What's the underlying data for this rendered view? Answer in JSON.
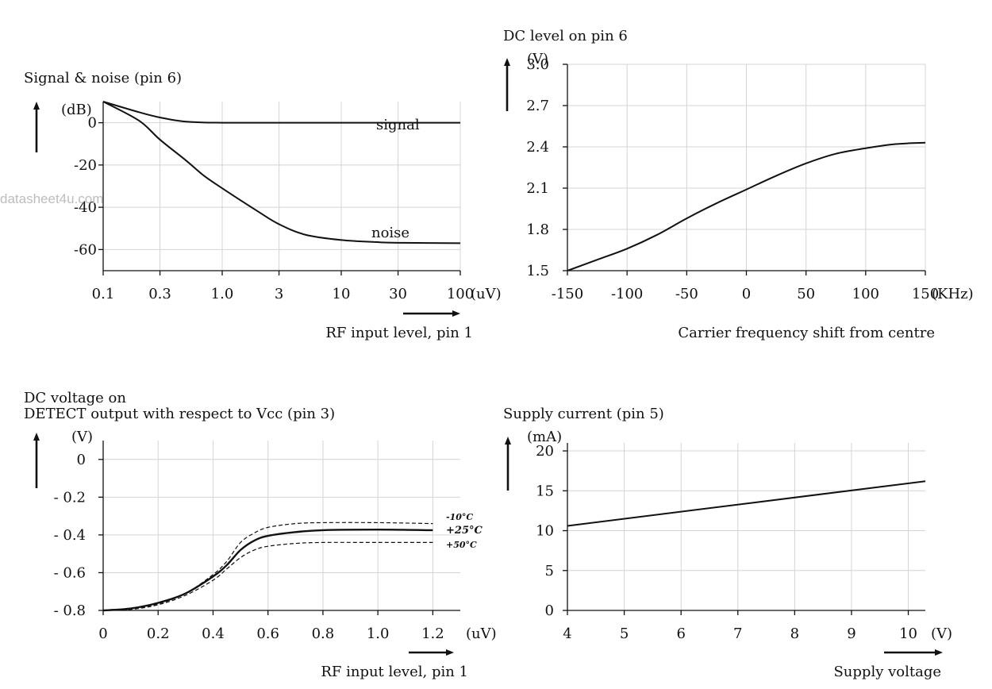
{
  "watermark": "datasheet4u.com",
  "chart_data": [
    {
      "type": "line",
      "title": "Signal & noise (pin 6)",
      "ylabel": "(dB)",
      "xunit": "(uV)",
      "xlabel": "RF input level, pin 1",
      "xscale": "log",
      "xlim": [
        0.1,
        100
      ],
      "ylim": [
        -70,
        10
      ],
      "xticks": [
        0.1,
        0.3,
        1.0,
        3,
        10,
        30,
        100
      ],
      "xtick_labels": [
        "0.1",
        "0.3",
        "1.0",
        "3",
        "10",
        "30",
        "100"
      ],
      "yticks": [
        0,
        -20,
        -40,
        -60
      ],
      "ytick_labels": [
        "0",
        "-20",
        "-40",
        "-60"
      ],
      "grid": true,
      "series": [
        {
          "name": "signal",
          "x": [
            0.1,
            0.2,
            0.3,
            0.5,
            1,
            3,
            10,
            30,
            100
          ],
          "y": [
            10,
            5,
            2.5,
            0.5,
            0,
            0,
            0,
            0,
            0
          ]
        },
        {
          "name": "noise",
          "x": [
            0.1,
            0.2,
            0.3,
            0.5,
            0.7,
            1,
            2,
            3,
            5,
            10,
            20,
            30,
            100
          ],
          "y": [
            10,
            1,
            -8,
            -18,
            -25,
            -31,
            -42,
            -48,
            -53,
            -55.5,
            -56.5,
            -56.8,
            -57
          ]
        }
      ]
    },
    {
      "type": "line",
      "title": "DC level on pin 6",
      "ylabel": "(V)",
      "xunit": "(KHz)",
      "xlabel": "Carrier frequency shift from centre",
      "xlim": [
        -150,
        150
      ],
      "ylim": [
        1.5,
        3.0
      ],
      "xticks": [
        -150,
        -100,
        -50,
        0,
        50,
        100,
        150
      ],
      "xtick_labels": [
        "-150",
        "-100",
        "-50",
        "0",
        "50",
        "100",
        "150"
      ],
      "yticks": [
        1.5,
        1.8,
        2.1,
        2.4,
        2.7,
        3.0
      ],
      "ytick_labels": [
        "1.5",
        "1.8",
        "2.1",
        "2.4",
        "2.7",
        "3.0"
      ],
      "grid": true,
      "series": [
        {
          "x": [
            -150,
            -125,
            -100,
            -75,
            -50,
            -25,
            0,
            25,
            50,
            75,
            100,
            125,
            150
          ],
          "y": [
            1.5,
            1.58,
            1.66,
            1.76,
            1.88,
            1.99,
            2.09,
            2.19,
            2.28,
            2.35,
            2.39,
            2.42,
            2.43
          ]
        }
      ]
    },
    {
      "type": "line",
      "title_lines": [
        "DC voltage on",
        "DETECT output with respect to Vcc (pin 3)"
      ],
      "ylabel": "(V)",
      "xunit": "(uV)",
      "xlabel": "RF input level, pin 1",
      "xlim": [
        0,
        1.3
      ],
      "ylim": [
        -0.8,
        0.1
      ],
      "xticks": [
        0,
        0.2,
        0.4,
        0.6,
        0.8,
        1.0,
        1.2
      ],
      "xtick_labels": [
        "0",
        "0.2",
        "0.4",
        "0.6",
        "0.8",
        "1.0",
        "1.2"
      ],
      "yticks": [
        0,
        -0.2,
        -0.4,
        -0.6,
        -0.8
      ],
      "ytick_labels": [
        "0",
        "- 0.2",
        "- 0.4",
        "- 0.6",
        "- 0.8"
      ],
      "grid": true,
      "series": [
        {
          "name": "+25°C",
          "style": "solid",
          "x": [
            0,
            0.1,
            0.2,
            0.3,
            0.4,
            0.45,
            0.5,
            0.55,
            0.6,
            0.7,
            0.8,
            1.0,
            1.2
          ],
          "y": [
            -0.8,
            -0.79,
            -0.76,
            -0.71,
            -0.62,
            -0.56,
            -0.48,
            -0.43,
            -0.405,
            -0.385,
            -0.375,
            -0.372,
            -0.375
          ]
        },
        {
          "name": "-10°C",
          "style": "dashed",
          "x": [
            0,
            0.1,
            0.2,
            0.3,
            0.4,
            0.45,
            0.5,
            0.55,
            0.6,
            0.7,
            0.8,
            1.0,
            1.2
          ],
          "y": [
            -0.8,
            -0.79,
            -0.765,
            -0.71,
            -0.61,
            -0.54,
            -0.44,
            -0.39,
            -0.36,
            -0.34,
            -0.335,
            -0.335,
            -0.34
          ]
        },
        {
          "name": "+50°C",
          "style": "dashed",
          "x": [
            0,
            0.1,
            0.2,
            0.3,
            0.4,
            0.45,
            0.5,
            0.55,
            0.6,
            0.7,
            0.8,
            1.0,
            1.2
          ],
          "y": [
            -0.8,
            -0.795,
            -0.77,
            -0.72,
            -0.64,
            -0.58,
            -0.52,
            -0.48,
            -0.46,
            -0.445,
            -0.44,
            -0.44,
            -0.44
          ]
        }
      ]
    },
    {
      "type": "line",
      "title": "Supply current (pin 5)",
      "ylabel": "(mA)",
      "xunit": "(V)",
      "xlabel": "Supply voltage",
      "xlim": [
        4,
        10.3
      ],
      "ylim": [
        0,
        21
      ],
      "xticks": [
        4,
        5,
        6,
        7,
        8,
        9,
        10
      ],
      "xtick_labels": [
        "4",
        "5",
        "6",
        "7",
        "8",
        "9",
        "10"
      ],
      "yticks": [
        0,
        5,
        10,
        15,
        20
      ],
      "ytick_labels": [
        "0",
        "5",
        "10",
        "15",
        "20"
      ],
      "grid": true,
      "series": [
        {
          "x": [
            4,
            10.3
          ],
          "y": [
            10.6,
            16.2
          ]
        }
      ]
    }
  ]
}
